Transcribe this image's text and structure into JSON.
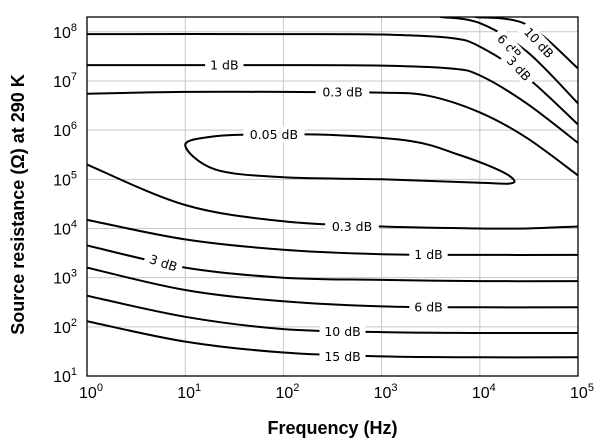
{
  "chart_data": {
    "type": "line",
    "xlabel": "Frequency (Hz)",
    "ylabel": "Source resistance (Ω) at 290 K",
    "xscale": "log",
    "yscale": "log",
    "xlim": [
      1,
      100000
    ],
    "ylim": [
      10,
      200000000
    ],
    "grid": true,
    "legend": "none",
    "x_ticks": [
      {
        "base": "10",
        "exp": "0"
      },
      {
        "base": "10",
        "exp": "1"
      },
      {
        "base": "10",
        "exp": "2"
      },
      {
        "base": "10",
        "exp": "3"
      },
      {
        "base": "10",
        "exp": "4"
      },
      {
        "base": "10",
        "exp": "5"
      }
    ],
    "y_ticks": [
      {
        "base": "10",
        "exp": "1"
      },
      {
        "base": "10",
        "exp": "2"
      },
      {
        "base": "10",
        "exp": "3"
      },
      {
        "base": "10",
        "exp": "4"
      },
      {
        "base": "10",
        "exp": "5"
      },
      {
        "base": "10",
        "exp": "6"
      },
      {
        "base": "10",
        "exp": "7"
      },
      {
        "base": "10",
        "exp": "8"
      }
    ],
    "series": [
      {
        "name": "0.05 dB",
        "closed": true,
        "points": [
          [
            10,
            500000
          ],
          [
            20,
            160000
          ],
          [
            100,
            110000
          ],
          [
            1000,
            100000
          ],
          [
            10000,
            85000
          ],
          [
            20000,
            82000
          ],
          [
            22000,
            100000
          ],
          [
            15000,
            160000
          ],
          [
            6000,
            320000
          ],
          [
            2000,
            600000
          ],
          [
            300,
            800000
          ],
          [
            60,
            820000
          ],
          [
            20,
            750000
          ],
          [
            10,
            500000
          ]
        ]
      },
      {
        "name": "0.3 dB",
        "points": [
          [
            1,
            5500000
          ],
          [
            10,
            6000000
          ],
          [
            100,
            6000000
          ],
          [
            1000,
            5800000
          ],
          [
            3000,
            5000000
          ],
          [
            10000,
            2300000
          ],
          [
            30000,
            700000
          ],
          [
            100000,
            120000
          ]
        ]
      },
      {
        "name": "0.3 dB",
        "points": [
          [
            1,
            200000
          ],
          [
            10,
            30000
          ],
          [
            100,
            14000
          ],
          [
            1000,
            11000
          ],
          [
            10000,
            10000
          ],
          [
            30000,
            10000
          ],
          [
            100000,
            11000
          ]
        ]
      },
      {
        "name": "1 dB",
        "points": [
          [
            1,
            21000000
          ],
          [
            10,
            21000000
          ],
          [
            100,
            21000000
          ],
          [
            1000,
            20500000
          ],
          [
            5000,
            18000000
          ],
          [
            10000,
            13000000
          ],
          [
            30000,
            3500000
          ],
          [
            100000,
            550000
          ]
        ]
      },
      {
        "name": "1 dB",
        "points": [
          [
            1,
            15000
          ],
          [
            10,
            6000
          ],
          [
            100,
            3700
          ],
          [
            1000,
            3000
          ],
          [
            10000,
            2900
          ],
          [
            100000,
            2900
          ]
        ]
      },
      {
        "name": "3 dB",
        "points": [
          [
            1,
            90000000
          ],
          [
            100,
            90000000
          ],
          [
            1000,
            88000000
          ],
          [
            5000,
            75000000
          ],
          [
            10000,
            50000000
          ],
          [
            30000,
            12000000
          ],
          [
            100000,
            1300000
          ]
        ]
      },
      {
        "name": "3 dB",
        "points": [
          [
            1,
            4500
          ],
          [
            10,
            1600
          ],
          [
            100,
            1000
          ],
          [
            1000,
            900
          ],
          [
            10000,
            850
          ],
          [
            100000,
            850
          ]
        ]
      },
      {
        "name": "6 dB",
        "points": [
          [
            4000,
            200000000
          ],
          [
            10000,
            150000000
          ],
          [
            30000,
            40000000
          ],
          [
            100000,
            3500000
          ]
        ]
      },
      {
        "name": "6 dB",
        "points": [
          [
            1,
            1600
          ],
          [
            10,
            560
          ],
          [
            100,
            330
          ],
          [
            1000,
            260
          ],
          [
            10000,
            250
          ],
          [
            100000,
            250
          ]
        ]
      },
      {
        "name": "10 dB",
        "points": [
          [
            9000,
            200000000
          ],
          [
            30000,
            140000000
          ],
          [
            100000,
            18000000
          ]
        ]
      },
      {
        "name": "10 dB",
        "points": [
          [
            1,
            430
          ],
          [
            10,
            160
          ],
          [
            100,
            90
          ],
          [
            1000,
            78
          ],
          [
            10000,
            75
          ],
          [
            100000,
            75
          ]
        ]
      },
      {
        "name": "15 dB",
        "points": [
          [
            1,
            130
          ],
          [
            10,
            50
          ],
          [
            100,
            30
          ],
          [
            1000,
            25
          ],
          [
            10000,
            24
          ],
          [
            100000,
            24
          ]
        ]
      }
    ],
    "labels": [
      {
        "text": "1 dB",
        "x": 25,
        "y": 21000000,
        "angle": 0
      },
      {
        "text": "0.3 dB",
        "x": 400,
        "y": 5900000,
        "angle": 0
      },
      {
        "text": "0.05 dB",
        "x": 80,
        "y": 820000,
        "angle": 0
      },
      {
        "text": "0.3 dB",
        "x": 500,
        "y": 11000,
        "angle": 0
      },
      {
        "text": "3 dB",
        "x": 6,
        "y": 2000,
        "angle": 18
      },
      {
        "text": "1 dB",
        "x": 3000,
        "y": 2950,
        "angle": 0
      },
      {
        "text": "6 dB",
        "x": 3000,
        "y": 255,
        "angle": 0
      },
      {
        "text": "10 dB",
        "x": 400,
        "y": 80,
        "angle": 0
      },
      {
        "text": "15 dB",
        "x": 400,
        "y": 25,
        "angle": 0
      },
      {
        "text": "10 dB",
        "x": 40000,
        "y": 60000000,
        "angle": 47
      },
      {
        "text": "6 dB",
        "x": 20000,
        "y": 50000000,
        "angle": 47
      },
      {
        "text": "3 dB",
        "x": 25000,
        "y": 18000000,
        "angle": 47
      }
    ]
  }
}
